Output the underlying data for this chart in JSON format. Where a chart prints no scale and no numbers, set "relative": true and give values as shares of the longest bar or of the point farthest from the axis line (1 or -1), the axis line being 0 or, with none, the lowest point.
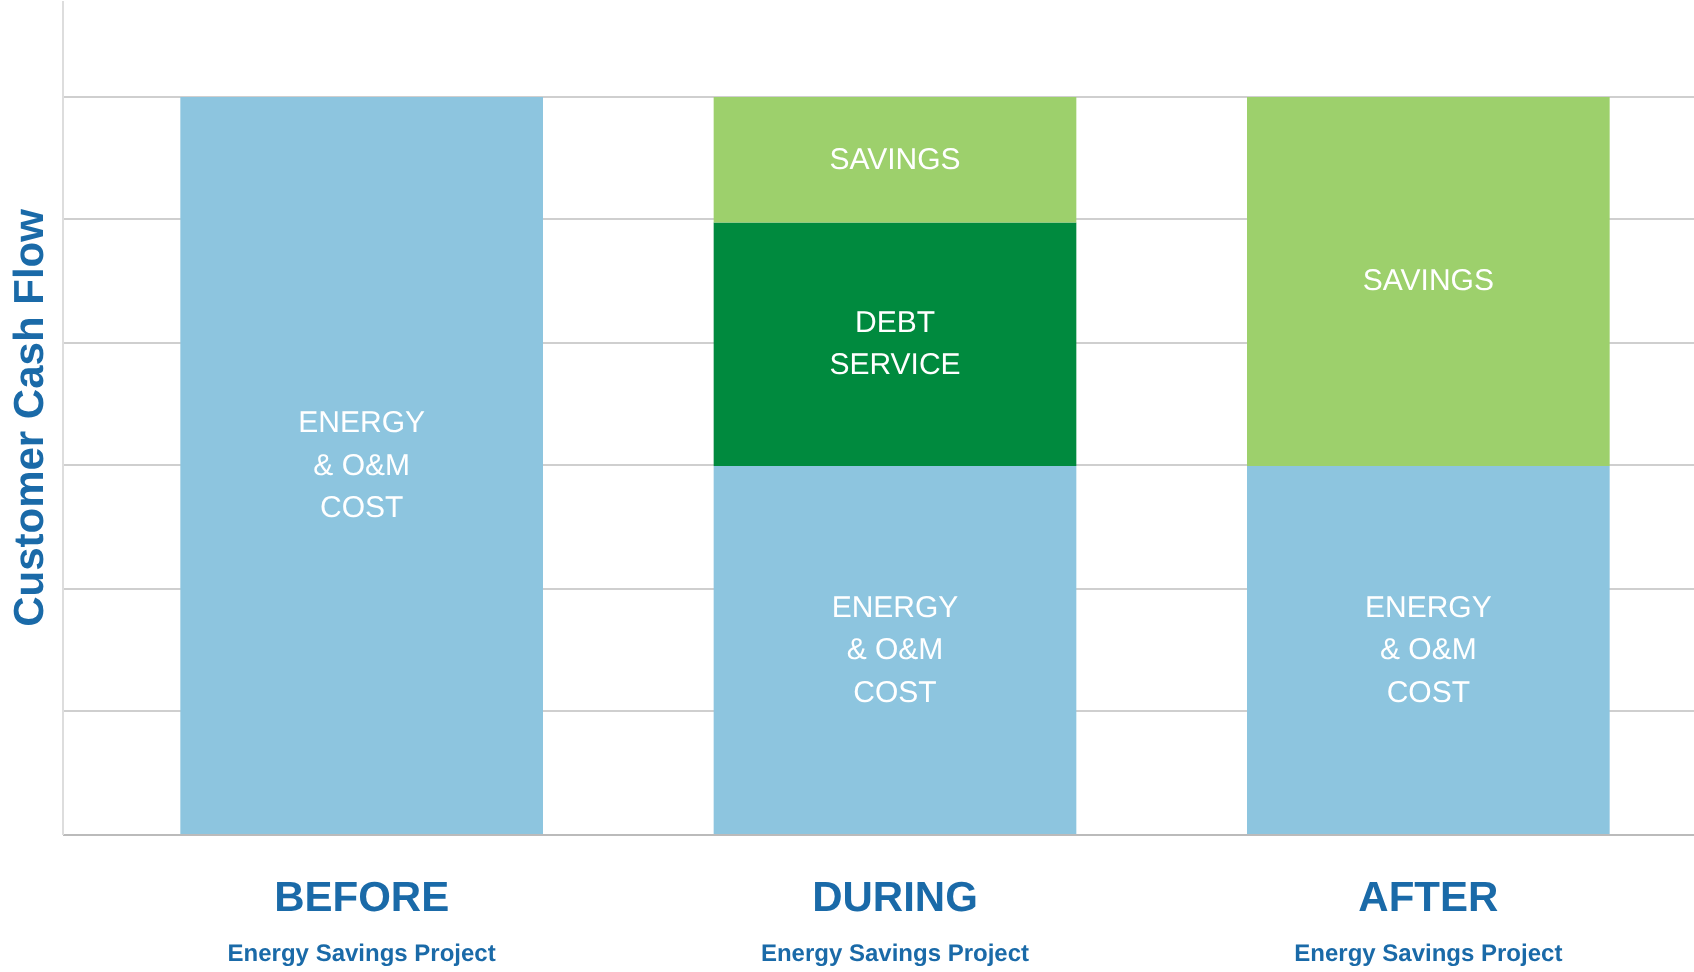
{
  "chart_data": {
    "type": "bar",
    "stacked": true,
    "relative": true,
    "ylabel": "Customer Cash Flow",
    "grid": "y",
    "categories": [
      "BEFORE\nEnergy Savings Project",
      "DURING\nEnergy Savings Project",
      "AFTER\nEnergy Savings Project"
    ],
    "series": [
      {
        "name": "ENERGY\n& O&M\nCOST",
        "color": "#8dc5df",
        "values": [
          1.0,
          0.5,
          0.5
        ]
      },
      {
        "name": "DEBT\nSERVICE",
        "color": "#008a3e",
        "values": [
          null,
          0.33,
          null
        ]
      },
      {
        "name": "SAVINGS",
        "color": "#9dd06c",
        "values": [
          null,
          0.17,
          0.5
        ]
      }
    ]
  }
}
